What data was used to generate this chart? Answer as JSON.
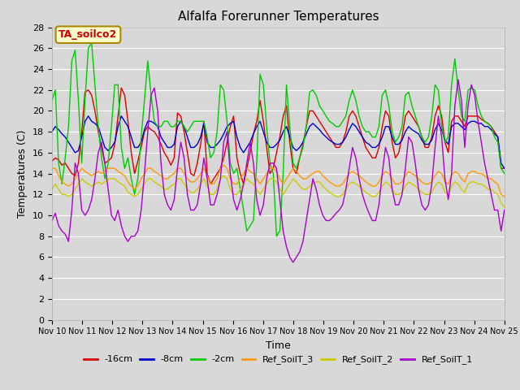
{
  "title": "Alfalfa Forerunner Temperatures",
  "xlabel": "Time",
  "ylabel": "Temperatures (C)",
  "ylim": [
    0,
    28
  ],
  "yticks": [
    0,
    2,
    4,
    6,
    8,
    10,
    12,
    14,
    16,
    18,
    20,
    22,
    24,
    26,
    28
  ],
  "xtick_labels": [
    "Nov 10",
    "Nov 11",
    "Nov 12",
    "Nov 13",
    "Nov 14",
    "Nov 15",
    "Nov 16",
    "Nov 17",
    "Nov 18",
    "Nov 19",
    "Nov 20",
    "Nov 21",
    "Nov 22",
    "Nov 23",
    "Nov 24",
    "Nov 25"
  ],
  "annotation_text": "TA_soilco2",
  "annotation_color": "#cc0000",
  "annotation_bg": "#ffffcc",
  "annotation_border": "#aa8800",
  "colors": {
    "-16cm": "#dd0000",
    "-8cm": "#0000cc",
    "-2cm": "#00cc00",
    "Ref_SoilT_3": "#ff9900",
    "Ref_SoilT_2": "#cccc00",
    "Ref_SoilT_1": "#aa00cc"
  },
  "background_color": "#d8d8d8",
  "plot_bg": "#d8d8d8",
  "grid_color": "#ffffff",
  "linewidth": 1.0,
  "series": {
    "-16cm": [
      15.2,
      15.5,
      15.3,
      14.8,
      15.0,
      14.5,
      14.0,
      13.8,
      15.0,
      18.0,
      21.8,
      22.0,
      21.5,
      20.0,
      18.0,
      16.5,
      15.0,
      15.2,
      15.5,
      16.8,
      19.5,
      22.2,
      21.5,
      19.0,
      16.0,
      14.0,
      15.2,
      16.5,
      18.0,
      18.5,
      18.2,
      18.0,
      17.5,
      16.8,
      16.0,
      15.5,
      14.8,
      15.5,
      19.8,
      19.5,
      18.0,
      16.0,
      14.0,
      13.8,
      15.0,
      16.8,
      19.0,
      14.0,
      13.0,
      13.5,
      14.0,
      14.5,
      15.5,
      17.0,
      18.5,
      19.5,
      15.5,
      14.0,
      13.0,
      14.5,
      16.0,
      17.8,
      19.0,
      21.0,
      19.0,
      16.5,
      14.0,
      14.5,
      16.0,
      17.5,
      19.5,
      20.5,
      17.0,
      14.5,
      14.0,
      15.5,
      16.8,
      18.5,
      20.0,
      20.0,
      19.5,
      19.0,
      18.5,
      18.0,
      17.5,
      17.0,
      16.5,
      16.5,
      17.0,
      18.0,
      19.5,
      20.0,
      19.5,
      18.5,
      17.5,
      16.5,
      16.0,
      15.5,
      15.5,
      16.5,
      18.5,
      20.0,
      19.5,
      17.0,
      15.5,
      16.0,
      17.5,
      19.5,
      20.0,
      19.5,
      19.0,
      18.5,
      17.5,
      16.5,
      16.5,
      17.5,
      19.5,
      20.5,
      19.5,
      17.0,
      16.0,
      19.0,
      19.5,
      19.5,
      19.0,
      18.5,
      19.5,
      19.5,
      19.5,
      19.5,
      19.2,
      19.0,
      18.8,
      18.5,
      18.0,
      17.5,
      14.5,
      14.5
    ],
    "-8cm": [
      18.0,
      18.5,
      18.2,
      17.8,
      17.5,
      17.0,
      16.5,
      16.0,
      16.2,
      17.5,
      19.0,
      19.5,
      19.0,
      18.8,
      18.5,
      17.5,
      16.5,
      16.2,
      16.5,
      17.0,
      18.5,
      19.5,
      19.0,
      18.5,
      17.5,
      16.5,
      16.5,
      17.0,
      18.2,
      19.0,
      19.0,
      18.8,
      18.5,
      17.5,
      17.0,
      16.5,
      16.5,
      16.8,
      18.5,
      19.0,
      18.5,
      17.5,
      16.5,
      16.5,
      16.8,
      17.5,
      18.8,
      17.0,
      16.5,
      16.5,
      16.8,
      17.2,
      17.8,
      18.5,
      18.8,
      19.0,
      17.5,
      16.5,
      16.0,
      16.5,
      17.0,
      17.8,
      18.5,
      19.0,
      18.0,
      17.0,
      16.5,
      16.5,
      16.8,
      17.2,
      18.0,
      18.5,
      17.5,
      16.5,
      16.2,
      16.5,
      17.0,
      17.8,
      18.5,
      18.8,
      18.5,
      18.2,
      17.8,
      17.5,
      17.2,
      17.0,
      16.8,
      16.8,
      17.0,
      17.5,
      18.2,
      18.8,
      18.5,
      18.0,
      17.5,
      17.0,
      16.8,
      16.5,
      16.5,
      16.8,
      17.5,
      18.5,
      18.5,
      17.5,
      16.8,
      16.8,
      17.2,
      18.0,
      18.5,
      18.2,
      18.0,
      17.8,
      17.2,
      16.8,
      16.8,
      17.2,
      18.2,
      18.8,
      18.2,
      17.2,
      16.8,
      18.5,
      18.8,
      18.8,
      18.5,
      18.2,
      18.8,
      19.0,
      19.0,
      18.8,
      18.8,
      18.5,
      18.5,
      18.2,
      17.8,
      17.5,
      15.0,
      14.5
    ],
    "-2cm": [
      21.0,
      22.0,
      15.0,
      13.0,
      15.5,
      18.5,
      24.8,
      25.8,
      21.0,
      15.0,
      21.0,
      26.0,
      26.5,
      22.5,
      18.5,
      15.5,
      13.5,
      15.0,
      18.5,
      22.5,
      22.5,
      16.5,
      14.5,
      15.5,
      13.5,
      12.0,
      13.5,
      17.5,
      21.0,
      24.8,
      21.5,
      19.0,
      18.5,
      18.5,
      19.0,
      19.0,
      18.5,
      18.5,
      19.0,
      19.0,
      18.5,
      18.0,
      18.5,
      19.0,
      19.0,
      19.0,
      19.0,
      17.5,
      15.5,
      16.0,
      18.0,
      22.5,
      22.0,
      19.0,
      15.0,
      14.0,
      14.5,
      12.5,
      10.5,
      8.5,
      9.0,
      9.5,
      15.0,
      23.5,
      22.5,
      18.5,
      15.0,
      14.0,
      8.0,
      8.5,
      14.0,
      22.5,
      18.5,
      15.0,
      14.5,
      15.5,
      16.5,
      18.5,
      21.8,
      22.0,
      21.5,
      20.5,
      20.0,
      19.5,
      19.0,
      18.8,
      18.5,
      18.5,
      19.0,
      19.5,
      21.0,
      22.0,
      21.0,
      19.5,
      18.5,
      18.0,
      18.0,
      17.5,
      17.5,
      18.5,
      21.5,
      22.0,
      20.5,
      18.0,
      17.0,
      17.5,
      18.5,
      21.5,
      21.8,
      20.5,
      19.5,
      18.5,
      17.5,
      17.0,
      17.5,
      19.5,
      22.5,
      22.0,
      18.5,
      17.0,
      17.5,
      22.5,
      25.0,
      22.0,
      19.5,
      19.0,
      22.0,
      22.2,
      22.0,
      20.5,
      19.5,
      19.0,
      18.8,
      18.5,
      17.5,
      17.0,
      14.5,
      14.0
    ],
    "Ref_SoilT_3": [
      14.5,
      14.5,
      13.8,
      13.2,
      13.0,
      12.8,
      13.0,
      13.5,
      14.0,
      14.5,
      14.2,
      14.0,
      13.8,
      14.0,
      14.2,
      14.0,
      14.2,
      14.5,
      14.5,
      14.5,
      14.2,
      14.0,
      13.8,
      13.2,
      12.8,
      12.5,
      12.8,
      13.5,
      14.0,
      14.5,
      14.5,
      14.2,
      14.0,
      13.8,
      13.5,
      13.5,
      13.8,
      14.0,
      14.5,
      14.5,
      14.0,
      13.5,
      13.2,
      13.2,
      13.5,
      14.0,
      14.5,
      13.8,
      13.0,
      13.0,
      13.5,
      14.5,
      14.8,
      14.5,
      13.5,
      13.0,
      13.0,
      13.5,
      14.0,
      14.5,
      14.2,
      14.0,
      13.5,
      13.0,
      13.5,
      14.0,
      14.5,
      14.5,
      14.2,
      13.5,
      13.0,
      13.5,
      14.0,
      14.5,
      14.2,
      13.8,
      13.5,
      13.5,
      13.8,
      14.0,
      14.2,
      14.2,
      13.8,
      13.5,
      13.2,
      13.0,
      12.8,
      12.8,
      13.0,
      13.5,
      14.0,
      14.2,
      14.0,
      13.8,
      13.5,
      13.2,
      13.0,
      12.8,
      12.8,
      13.2,
      13.8,
      14.2,
      14.0,
      13.5,
      13.0,
      13.0,
      13.2,
      13.8,
      14.2,
      14.0,
      13.8,
      13.5,
      13.2,
      13.0,
      13.0,
      13.2,
      13.8,
      14.2,
      14.0,
      13.2,
      13.0,
      13.8,
      14.2,
      14.0,
      13.5,
      13.2,
      14.0,
      14.2,
      14.2,
      14.0,
      14.0,
      13.8,
      13.5,
      13.5,
      13.2,
      13.0,
      12.0,
      11.8
    ],
    "Ref_SoilT_2": [
      12.5,
      13.0,
      12.5,
      12.0,
      12.0,
      11.8,
      12.0,
      12.5,
      13.0,
      13.5,
      13.2,
      13.0,
      12.8,
      13.0,
      13.2,
      13.0,
      13.2,
      13.5,
      13.5,
      13.5,
      13.2,
      13.0,
      12.8,
      12.2,
      12.0,
      11.8,
      12.0,
      12.5,
      13.0,
      13.5,
      13.5,
      13.2,
      13.0,
      12.8,
      12.5,
      12.5,
      12.8,
      13.0,
      13.5,
      13.5,
      13.0,
      12.5,
      12.2,
      12.2,
      12.5,
      13.0,
      13.5,
      12.8,
      12.0,
      12.0,
      12.5,
      13.5,
      13.8,
      13.5,
      12.5,
      12.0,
      12.0,
      12.5,
      13.0,
      13.5,
      13.2,
      13.0,
      12.5,
      12.0,
      12.5,
      13.0,
      13.5,
      13.5,
      13.2,
      12.5,
      12.0,
      12.5,
      13.0,
      13.5,
      13.2,
      12.8,
      12.5,
      12.5,
      12.8,
      13.0,
      13.2,
      13.2,
      12.8,
      12.5,
      12.2,
      12.0,
      11.8,
      11.8,
      12.0,
      12.5,
      13.0,
      13.2,
      13.0,
      12.8,
      12.5,
      12.2,
      12.0,
      11.8,
      11.8,
      12.2,
      12.8,
      13.2,
      13.0,
      12.5,
      12.0,
      12.0,
      12.2,
      12.8,
      13.2,
      13.0,
      12.8,
      12.5,
      12.2,
      12.0,
      12.0,
      12.2,
      12.8,
      13.2,
      13.0,
      12.2,
      12.0,
      12.8,
      13.2,
      13.0,
      12.5,
      12.2,
      13.0,
      13.2,
      13.2,
      13.0,
      13.0,
      12.8,
      12.5,
      12.5,
      12.2,
      12.0,
      11.2,
      10.8
    ],
    "Ref_SoilT_1": [
      9.5,
      10.2,
      9.0,
      8.5,
      8.2,
      7.5,
      10.5,
      15.0,
      14.0,
      10.5,
      10.0,
      10.5,
      11.5,
      13.5,
      16.0,
      17.0,
      15.0,
      12.5,
      10.0,
      9.5,
      10.5,
      9.0,
      8.0,
      7.5,
      8.0,
      8.0,
      8.5,
      10.5,
      14.0,
      18.0,
      21.5,
      22.2,
      20.0,
      15.0,
      12.0,
      11.0,
      10.5,
      11.5,
      14.5,
      17.0,
      15.5,
      12.0,
      10.5,
      10.5,
      11.0,
      13.0,
      15.5,
      13.5,
      11.0,
      11.0,
      12.0,
      13.5,
      17.0,
      18.0,
      14.0,
      11.5,
      10.5,
      11.5,
      13.0,
      15.0,
      17.0,
      15.0,
      11.5,
      10.0,
      11.0,
      13.5,
      15.0,
      15.0,
      14.5,
      11.5,
      8.5,
      7.0,
      6.0,
      5.5,
      6.0,
      6.5,
      7.5,
      9.5,
      11.5,
      13.5,
      12.5,
      11.0,
      10.0,
      9.5,
      9.5,
      9.8,
      10.2,
      10.5,
      11.0,
      12.5,
      14.5,
      16.5,
      15.5,
      13.5,
      12.0,
      11.0,
      10.2,
      9.5,
      9.5,
      11.0,
      14.0,
      16.5,
      15.5,
      12.5,
      11.0,
      11.0,
      12.0,
      14.5,
      17.5,
      17.0,
      15.0,
      12.5,
      11.0,
      10.5,
      11.0,
      13.0,
      16.5,
      19.5,
      17.5,
      13.5,
      11.5,
      14.0,
      20.5,
      23.0,
      21.0,
      16.5,
      20.5,
      22.5,
      21.5,
      19.0,
      17.0,
      15.0,
      13.5,
      12.0,
      10.5,
      10.5,
      8.5,
      10.5
    ]
  }
}
